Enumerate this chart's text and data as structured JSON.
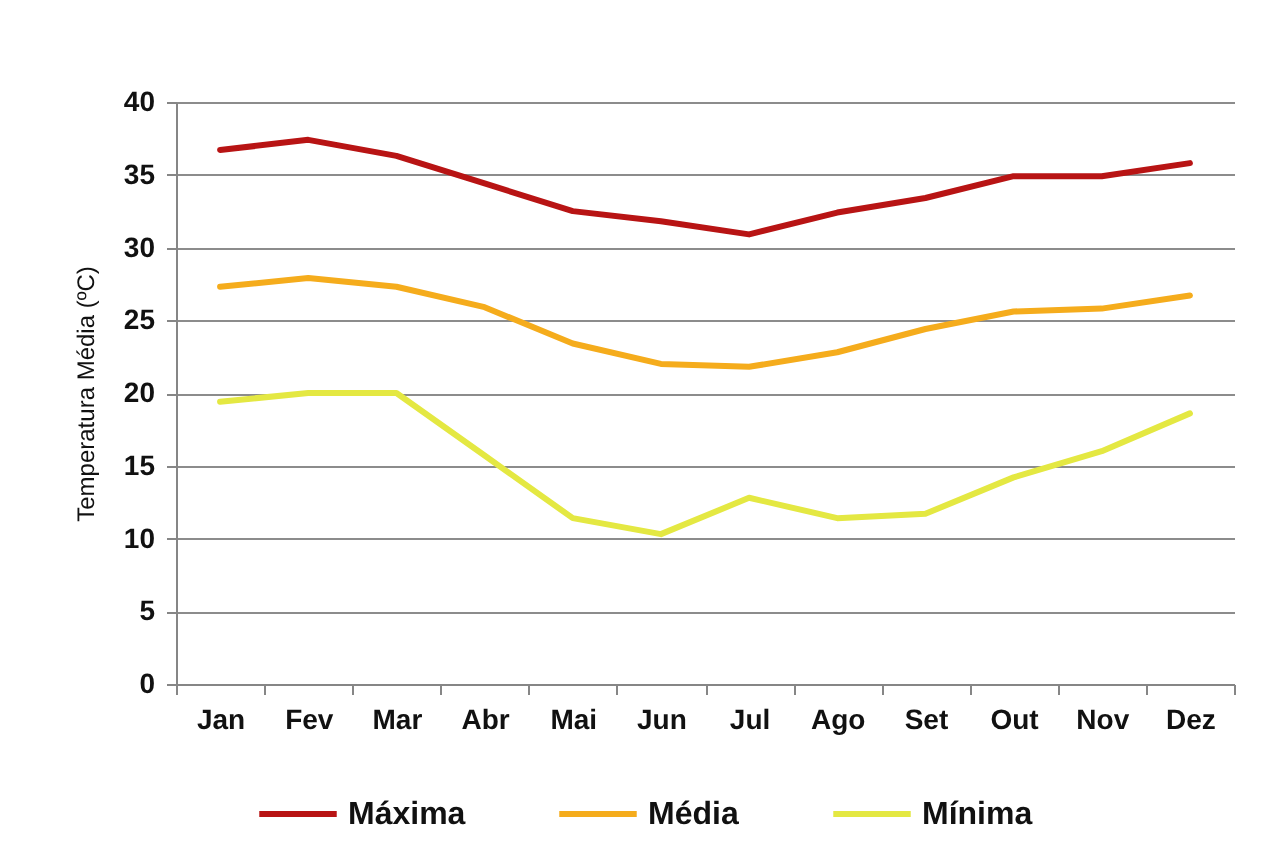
{
  "chart_data": {
    "type": "line",
    "ylabel": "Temperatura Média (ºC)",
    "categories": [
      "Jan",
      "Fev",
      "Mar",
      "Abr",
      "Mai",
      "Jun",
      "Jul",
      "Ago",
      "Set",
      "Out",
      "Nov",
      "Dez"
    ],
    "series": [
      {
        "name": "Máxima",
        "color": "#b81414",
        "values": [
          36.7,
          37.4,
          36.3,
          34.4,
          32.5,
          31.8,
          30.9,
          32.4,
          33.4,
          34.9,
          34.9,
          35.8
        ]
      },
      {
        "name": "Média",
        "color": "#f5ac1c",
        "values": [
          27.3,
          27.9,
          27.3,
          25.9,
          23.4,
          22.0,
          21.8,
          22.8,
          24.4,
          25.6,
          25.8,
          26.7
        ]
      },
      {
        "name": "Mínima",
        "color": "#e4e842",
        "values": [
          19.4,
          20.0,
          20.0,
          15.7,
          11.4,
          10.3,
          12.8,
          11.4,
          11.7,
          14.2,
          16.0,
          18.6
        ]
      }
    ],
    "ylim": [
      0,
      40
    ],
    "yticks": [
      0,
      5,
      10,
      15,
      20,
      25,
      30,
      35,
      40
    ],
    "grid": "y",
    "legend": "bottom",
    "line_style": "solid"
  }
}
